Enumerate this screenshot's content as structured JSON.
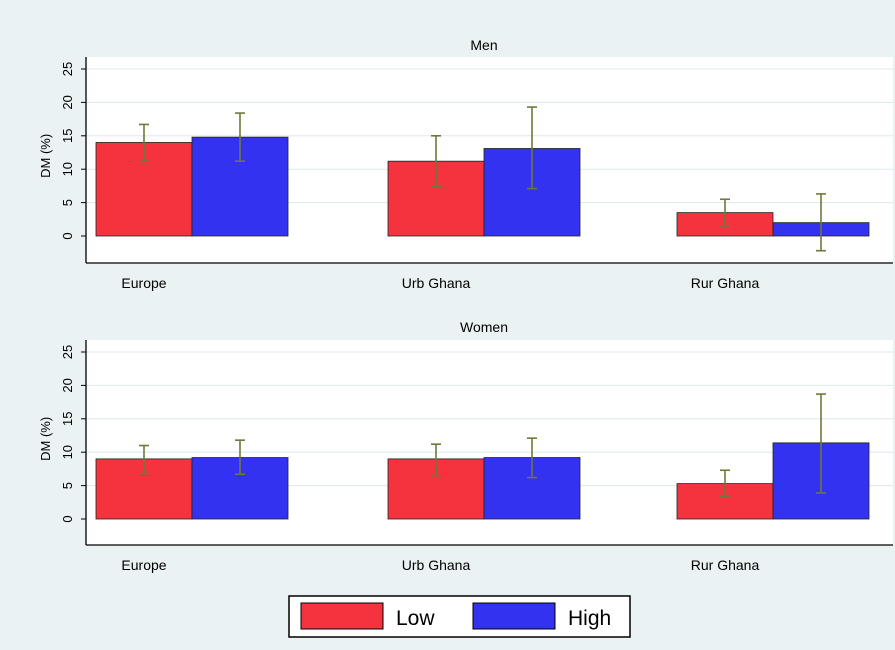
{
  "colors": {
    "background": "#eaf2f3",
    "plot_bg": "#ffffff",
    "low": "#f5333f",
    "high": "#3232f0",
    "error_bar": "#6b7a3a",
    "grid": "#dde8ea"
  },
  "legend": {
    "items": [
      "Low",
      "High"
    ]
  },
  "chart_data": [
    {
      "type": "bar",
      "title": "Men",
      "ylabel": "DM (%)",
      "ylim": [
        -4,
        27
      ],
      "yticks": [
        0,
        5,
        10,
        15,
        20,
        25
      ],
      "categories": [
        "Europe",
        "Urb Ghana",
        "Rur Ghana"
      ],
      "series": [
        {
          "name": "Low",
          "values": [
            14.0,
            11.2,
            3.5
          ],
          "err_low": [
            11.2,
            7.4,
            1.5
          ],
          "err_high": [
            16.7,
            15.0,
            5.5
          ]
        },
        {
          "name": "High",
          "values": [
            14.8,
            13.1,
            2.0
          ],
          "err_low": [
            11.2,
            7.1,
            -2.2
          ],
          "err_high": [
            18.4,
            19.3,
            6.3
          ]
        }
      ],
      "grid": true
    },
    {
      "type": "bar",
      "title": "Women",
      "ylabel": "DM (%)",
      "ylim": [
        -4,
        27
      ],
      "yticks": [
        0,
        5,
        10,
        15,
        20,
        25
      ],
      "categories": [
        "Europe",
        "Urb Ghana",
        "Rur Ghana"
      ],
      "series": [
        {
          "name": "Low",
          "values": [
            9.0,
            9.0,
            5.3
          ],
          "err_low": [
            6.8,
            6.5,
            3.4
          ],
          "err_high": [
            11.0,
            11.2,
            7.3
          ]
        },
        {
          "name": "High",
          "values": [
            9.2,
            9.2,
            11.4
          ],
          "err_low": [
            6.7,
            6.2,
            3.9
          ],
          "err_high": [
            11.8,
            12.1,
            18.7
          ]
        }
      ],
      "grid": true
    }
  ]
}
